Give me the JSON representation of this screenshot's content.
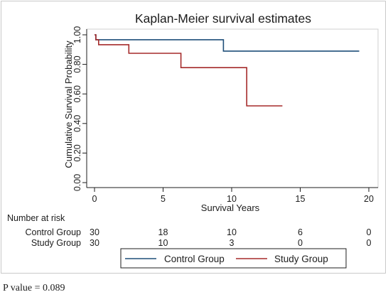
{
  "chart_data": {
    "type": "line",
    "title": "Kaplan-Meier survival estimates",
    "xlabel": "Survival Years",
    "ylabel": "Cumulative Survival Probability",
    "xlim": [
      0,
      20
    ],
    "ylim": [
      0,
      1
    ],
    "xticks": [
      0,
      5,
      10,
      15,
      20
    ],
    "xtick_labels": [
      "0",
      "5",
      "10",
      "15",
      "20"
    ],
    "yticks": [
      0,
      0.2,
      0.4,
      0.6,
      0.8,
      1.0
    ],
    "ytick_labels": [
      "0.00",
      "0.20",
      "0.40",
      "0.60",
      "0.80",
      "1.00"
    ],
    "grid": false,
    "step": true,
    "series": [
      {
        "name": "Control Group",
        "color": "#1f4e79",
        "x": [
          0,
          0.1,
          0.1,
          9.4,
          9.4,
          19.3
        ],
        "y": [
          1.0,
          1.0,
          0.967,
          0.967,
          0.89,
          0.89
        ]
      },
      {
        "name": "Study Group",
        "color": "#a52a2a",
        "x": [
          0,
          0.1,
          0.1,
          0.3,
          0.3,
          2.5,
          2.5,
          6.3,
          6.3,
          11.1,
          11.1,
          13.7
        ],
        "y": [
          1.0,
          1.0,
          0.967,
          0.967,
          0.933,
          0.933,
          0.875,
          0.875,
          0.778,
          0.778,
          0.519,
          0.519
        ]
      }
    ],
    "risk_table": {
      "header": "Number at risk",
      "times": [
        0,
        5,
        10,
        15,
        20
      ],
      "rows": [
        {
          "label": "Control Group",
          "values": [
            "30",
            "18",
            "10",
            "6",
            "0"
          ]
        },
        {
          "label": "Study Group",
          "values": [
            "30",
            "10",
            "3",
            "0",
            "0"
          ]
        }
      ]
    },
    "legend": {
      "position": "bottom",
      "entries": [
        "Control Group",
        "Study Group"
      ]
    }
  },
  "footnote": "P value = 0.089"
}
